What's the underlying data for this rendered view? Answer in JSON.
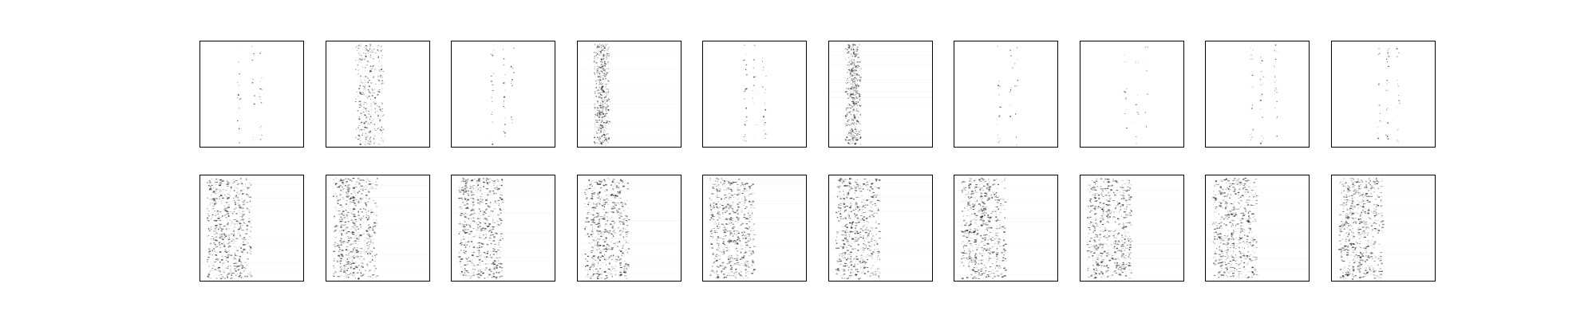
{
  "figure": {
    "rows": 2,
    "columns": 10,
    "background": "#ffffff",
    "ink": "#000000",
    "panels": [
      {
        "row": 0,
        "col": 0,
        "style": "sparse-column",
        "density": 0.35
      },
      {
        "row": 0,
        "col": 1,
        "style": "dense-column",
        "density": 0.75
      },
      {
        "row": 0,
        "col": 2,
        "style": "sparse-column",
        "density": 0.45
      },
      {
        "row": 0,
        "col": 3,
        "style": "smeared-band",
        "density": 0.85
      },
      {
        "row": 0,
        "col": 4,
        "style": "sparse-column",
        "density": 0.55
      },
      {
        "row": 0,
        "col": 5,
        "style": "smeared-band",
        "density": 0.9
      },
      {
        "row": 0,
        "col": 6,
        "style": "sparse-column",
        "density": 0.35
      },
      {
        "row": 0,
        "col": 7,
        "style": "sparse-column",
        "density": 0.25
      },
      {
        "row": 0,
        "col": 8,
        "style": "sparse-column",
        "density": 0.5
      },
      {
        "row": 0,
        "col": 9,
        "style": "sparse-column",
        "density": 0.45
      },
      {
        "row": 1,
        "col": 0,
        "style": "heavy-band",
        "density": 0.9
      },
      {
        "row": 1,
        "col": 1,
        "style": "heavy-band",
        "density": 0.9
      },
      {
        "row": 1,
        "col": 2,
        "style": "heavy-band",
        "density": 0.9
      },
      {
        "row": 1,
        "col": 3,
        "style": "heavy-band",
        "density": 0.9
      },
      {
        "row": 1,
        "col": 4,
        "style": "heavy-band",
        "density": 0.9
      },
      {
        "row": 1,
        "col": 5,
        "style": "heavy-band",
        "density": 0.9
      },
      {
        "row": 1,
        "col": 6,
        "style": "heavy-band",
        "density": 0.9
      },
      {
        "row": 1,
        "col": 7,
        "style": "heavy-band",
        "density": 0.9
      },
      {
        "row": 1,
        "col": 8,
        "style": "heavy-band",
        "density": 0.9
      },
      {
        "row": 1,
        "col": 9,
        "style": "heavy-band",
        "density": 0.9
      }
    ]
  }
}
